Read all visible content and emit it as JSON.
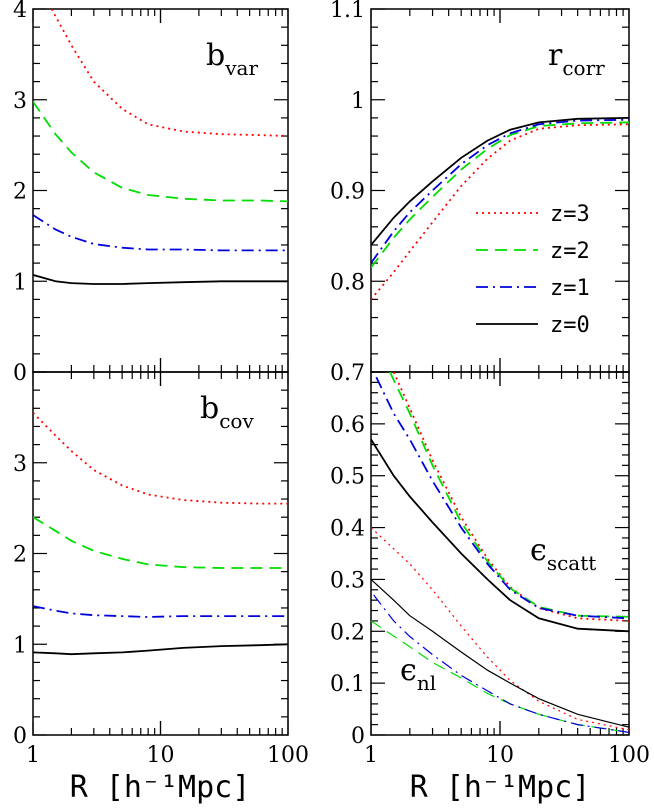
{
  "figure": {
    "xlabel": "R [h⁻¹Mpc]",
    "legend": [
      "z=3",
      "z=2",
      "z=1",
      "z=0"
    ]
  },
  "colors": {
    "z3": "#ff0000",
    "z2": "#00dd00",
    "z1": "#0000dd",
    "z0": "#000000"
  },
  "chart_data": [
    {
      "type": "line",
      "panel": "top-left",
      "label_main": "b",
      "label_sub": "var",
      "xscale": "log",
      "xlim": [
        1,
        100
      ],
      "ylim": [
        0,
        4
      ],
      "yticks": [
        "0",
        "1",
        "2",
        "3",
        "4"
      ],
      "xticks": [],
      "series": [
        {
          "name": "z=3",
          "style": "dotted",
          "color": "#ff0000",
          "x": [
            1.4,
            2,
            3,
            5,
            8,
            15,
            30,
            60,
            100
          ],
          "y": [
            4.0,
            3.6,
            3.2,
            2.9,
            2.73,
            2.65,
            2.62,
            2.61,
            2.6
          ]
        },
        {
          "name": "z=2",
          "style": "dashed",
          "color": "#00dd00",
          "x": [
            1,
            1.5,
            2,
            3,
            5,
            8,
            15,
            30,
            60,
            100
          ],
          "y": [
            2.98,
            2.62,
            2.42,
            2.2,
            2.03,
            1.95,
            1.91,
            1.89,
            1.89,
            1.88
          ]
        },
        {
          "name": "z=1",
          "style": "dashdot",
          "color": "#0000dd",
          "x": [
            1,
            1.5,
            2,
            3,
            5,
            8,
            15,
            30,
            60,
            100
          ],
          "y": [
            1.73,
            1.57,
            1.49,
            1.41,
            1.37,
            1.35,
            1.35,
            1.34,
            1.34,
            1.34
          ]
        },
        {
          "name": "z=0",
          "style": "solid",
          "color": "#000000",
          "x": [
            1,
            1.5,
            2,
            3,
            5,
            8,
            15,
            30,
            60,
            100
          ],
          "y": [
            1.07,
            1.0,
            0.98,
            0.97,
            0.97,
            0.98,
            0.99,
            1.0,
            1.0,
            1.0
          ]
        }
      ]
    },
    {
      "type": "line",
      "panel": "bottom-left",
      "label_main": "b",
      "label_sub": "cov",
      "xscale": "log",
      "xlim": [
        1,
        100
      ],
      "ylim": [
        0,
        4
      ],
      "yticks": [
        "0",
        "1",
        "2",
        "3"
      ],
      "xticks": [
        "1",
        "10",
        "100"
      ],
      "series": [
        {
          "name": "z=3",
          "style": "dotted",
          "color": "#ff0000",
          "x": [
            1,
            1.5,
            2,
            3,
            5,
            8,
            15,
            30,
            60,
            100
          ],
          "y": [
            3.55,
            3.3,
            3.13,
            2.92,
            2.75,
            2.65,
            2.59,
            2.56,
            2.55,
            2.55
          ]
        },
        {
          "name": "z=2",
          "style": "dashed",
          "color": "#00dd00",
          "x": [
            1,
            1.5,
            2,
            3,
            5,
            8,
            15,
            30,
            60,
            100
          ],
          "y": [
            2.4,
            2.25,
            2.14,
            2.03,
            1.94,
            1.88,
            1.85,
            1.84,
            1.84,
            1.84
          ]
        },
        {
          "name": "z=1",
          "style": "dashdot",
          "color": "#0000dd",
          "x": [
            1,
            1.5,
            2,
            3,
            5,
            8,
            15,
            30,
            60,
            100
          ],
          "y": [
            1.42,
            1.37,
            1.34,
            1.32,
            1.31,
            1.3,
            1.31,
            1.31,
            1.31,
            1.31
          ]
        },
        {
          "name": "z=0",
          "style": "solid",
          "color": "#000000",
          "x": [
            1,
            1.5,
            2,
            3,
            5,
            8,
            15,
            30,
            60,
            100
          ],
          "y": [
            0.91,
            0.9,
            0.89,
            0.9,
            0.91,
            0.93,
            0.96,
            0.98,
            0.99,
            1.0
          ]
        }
      ]
    },
    {
      "type": "line",
      "panel": "top-right",
      "label_main": "r",
      "label_sub": "corr",
      "xscale": "log",
      "xlim": [
        1,
        100
      ],
      "ylim": [
        0.7,
        1.1
      ],
      "yticks": [
        "0.8",
        "0.9",
        "1",
        "1.1"
      ],
      "xticks": [],
      "series": [
        {
          "name": "z=3",
          "style": "dotted",
          "color": "#ff0000",
          "x": [
            1,
            1.5,
            2,
            3,
            5,
            8,
            12,
            20,
            40,
            100
          ],
          "y": [
            0.78,
            0.81,
            0.833,
            0.865,
            0.905,
            0.935,
            0.955,
            0.968,
            0.972,
            0.973
          ]
        },
        {
          "name": "z=2",
          "style": "dashed",
          "color": "#00dd00",
          "x": [
            1,
            1.5,
            2,
            3,
            5,
            8,
            12,
            20,
            40,
            100
          ],
          "y": [
            0.815,
            0.848,
            0.868,
            0.893,
            0.923,
            0.946,
            0.961,
            0.971,
            0.974,
            0.975
          ]
        },
        {
          "name": "z=1",
          "style": "dashdot",
          "color": "#0000dd",
          "x": [
            1,
            1.5,
            2,
            3,
            5,
            8,
            12,
            20,
            40,
            100
          ],
          "y": [
            0.82,
            0.855,
            0.876,
            0.9,
            0.929,
            0.95,
            0.963,
            0.973,
            0.977,
            0.978
          ]
        },
        {
          "name": "z=0",
          "style": "solid",
          "color": "#000000",
          "x": [
            1,
            1.5,
            2,
            3,
            5,
            8,
            12,
            20,
            40,
            100
          ],
          "y": [
            0.84,
            0.87,
            0.888,
            0.91,
            0.936,
            0.955,
            0.967,
            0.975,
            0.979,
            0.98
          ]
        }
      ]
    },
    {
      "type": "line",
      "panel": "bottom-right",
      "label_eps_scatt": "scatt",
      "label_eps_nl": "nl",
      "xscale": "log",
      "xlim": [
        1,
        100
      ],
      "ylim": [
        0,
        0.7
      ],
      "yticks": [
        "0",
        "0.1",
        "0.2",
        "0.3",
        "0.4",
        "0.5",
        "0.6",
        "0.7"
      ],
      "xticks": [
        "1",
        "10",
        "100"
      ],
      "series": [
        {
          "name": "z=3",
          "group": "scatt",
          "style": "dotted",
          "color": "#ff0000",
          "x": [
            1.5,
            2,
            3,
            5,
            8,
            12,
            20,
            40,
            100
          ],
          "y": [
            0.7,
            0.63,
            0.53,
            0.42,
            0.34,
            0.285,
            0.245,
            0.225,
            0.22
          ]
        },
        {
          "name": "z=2",
          "group": "scatt",
          "style": "dashed",
          "color": "#00dd00",
          "x": [
            1.4,
            2,
            3,
            5,
            8,
            12,
            20,
            40,
            100
          ],
          "y": [
            0.7,
            0.62,
            0.52,
            0.41,
            0.335,
            0.283,
            0.247,
            0.23,
            0.228
          ]
        },
        {
          "name": "z=1",
          "group": "scatt",
          "style": "dashdot",
          "color": "#0000dd",
          "x": [
            1.1,
            1.5,
            2,
            3,
            5,
            8,
            12,
            20,
            40,
            100
          ],
          "y": [
            0.69,
            0.62,
            0.57,
            0.49,
            0.4,
            0.33,
            0.28,
            0.245,
            0.23,
            0.225
          ]
        },
        {
          "name": "z=0",
          "group": "scatt",
          "style": "solid",
          "color": "#000000",
          "x": [
            1,
            1.5,
            2,
            3,
            5,
            8,
            12,
            20,
            40,
            100
          ],
          "y": [
            0.57,
            0.5,
            0.46,
            0.41,
            0.35,
            0.3,
            0.26,
            0.225,
            0.205,
            0.2
          ]
        },
        {
          "name": "z=3",
          "group": "nl",
          "style": "dotted",
          "color": "#ff0000",
          "x": [
            1,
            2,
            3,
            5,
            8,
            12,
            20,
            40,
            100
          ],
          "y": [
            0.4,
            0.33,
            0.28,
            0.21,
            0.15,
            0.105,
            0.065,
            0.03,
            0.01
          ]
        },
        {
          "name": "z=2",
          "group": "nl",
          "style": "dashed",
          "color": "#00dd00",
          "x": [
            1,
            2,
            3,
            5,
            8,
            12,
            20,
            40,
            100
          ],
          "y": [
            0.22,
            0.17,
            0.14,
            0.11,
            0.08,
            0.06,
            0.04,
            0.02,
            0.005
          ]
        },
        {
          "name": "z=1",
          "group": "nl",
          "style": "dashdot",
          "color": "#0000dd",
          "x": [
            1.05,
            1.5,
            2,
            3,
            5,
            8,
            12,
            20,
            40,
            100
          ],
          "y": [
            0.27,
            0.22,
            0.19,
            0.155,
            0.115,
            0.085,
            0.06,
            0.04,
            0.02,
            0.005
          ]
        },
        {
          "name": "z=0",
          "group": "nl",
          "style": "solid",
          "color": "#000000",
          "x": [
            1,
            1.5,
            2,
            3,
            5,
            8,
            12,
            20,
            40,
            100
          ],
          "y": [
            0.3,
            0.26,
            0.23,
            0.2,
            0.16,
            0.125,
            0.1,
            0.07,
            0.04,
            0.015
          ]
        }
      ]
    }
  ]
}
